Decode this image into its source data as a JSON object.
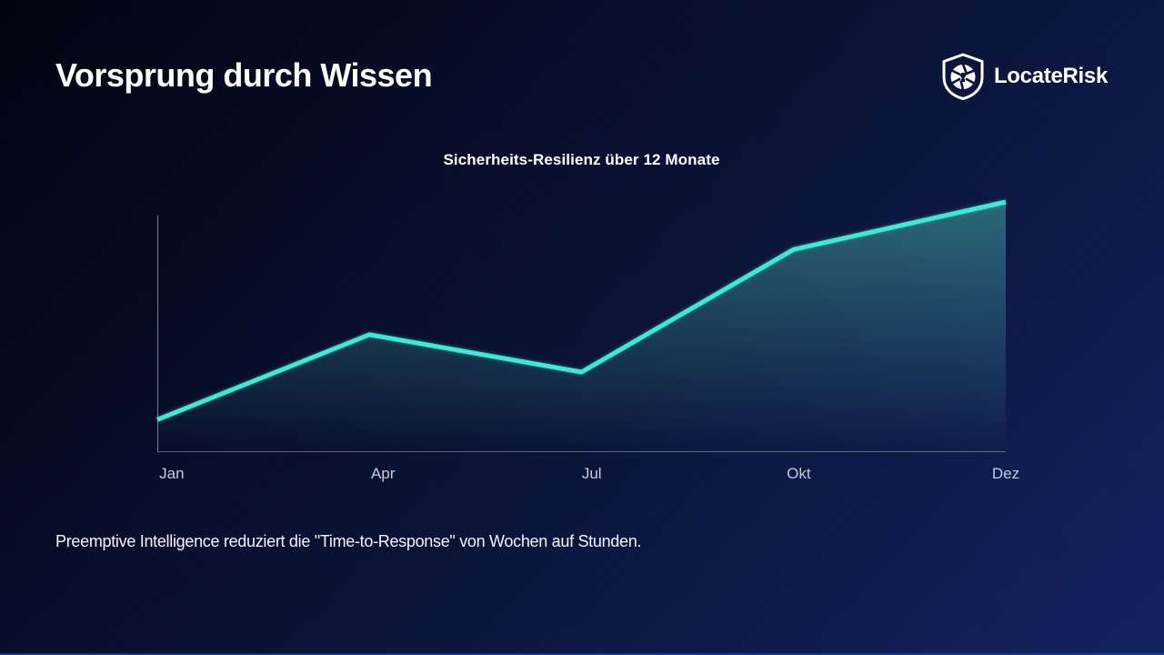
{
  "slide": {
    "title": "Vorsprung durch Wissen",
    "footer_note": "Preemptive Intelligence reduziert die \"Time-to-Response\" von Wochen auf Stunden."
  },
  "brand": {
    "name": "LocateRisk",
    "icon": "shield-aperture-keyhole-icon"
  },
  "chart_data": {
    "type": "area",
    "title": "Sicherheits-Resilienz über 12 Monate",
    "categories": [
      "Jan",
      "Apr",
      "Jul",
      "Okt",
      "Dez"
    ],
    "series": [
      {
        "name": "Sicherheits-Resilienz",
        "values": [
          13,
          47,
          32,
          81,
          100
        ]
      }
    ],
    "xlabel": "",
    "ylabel": "",
    "ylim": [
      0,
      100
    ],
    "grid": false,
    "legend": "none",
    "line_color": "#3ee8d6",
    "area_fill_top": "rgba(94,234,212,0.38)",
    "area_fill_bottom": "rgba(94,234,212,0)"
  },
  "colors": {
    "background_start": "#02030f",
    "background_end": "#13235f",
    "accent_teal": "#3ee8d6",
    "axis": "#aab2cd",
    "tick_label": "#c6cbd9",
    "text": "#ffffff"
  }
}
